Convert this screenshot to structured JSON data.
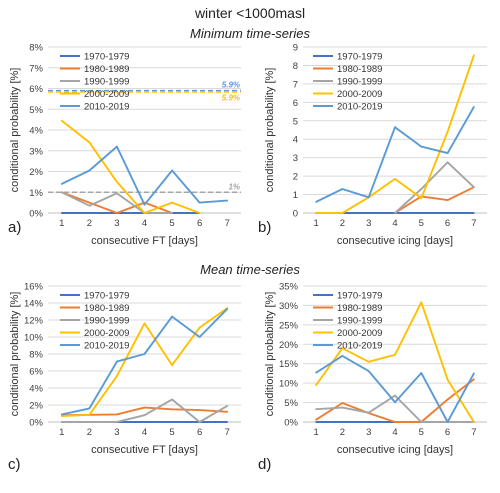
{
  "title": "winter <1000masl",
  "section_top": "Minimum time-series",
  "section_bottom": "Mean time-series",
  "colors": {
    "1970-1979": "#4472c4",
    "1980-1989": "#ed7d31",
    "1990-1999": "#a5a5a5",
    "2000-2009": "#ffc000",
    "2010-2019": "#5b9bd5",
    "grid": "#d9d9d9",
    "axis": "#bfbfbf"
  },
  "chart_data": [
    {
      "id": "a",
      "panel_label": "a)",
      "type": "line",
      "xlabel": "consecutive FT [days]",
      "ylabel": "conditional probability [%]",
      "x": [
        1,
        2,
        3,
        4,
        5,
        6,
        7
      ],
      "ylim": [
        0,
        8
      ],
      "yticks": [
        0,
        1,
        2,
        3,
        4,
        5,
        6,
        7,
        8
      ],
      "ytick_suffix": "%",
      "legend_position": "top-left",
      "series": [
        {
          "name": "1970-1979",
          "values": [
            0,
            0,
            0,
            0,
            0,
            0,
            null
          ]
        },
        {
          "name": "1980-1989",
          "values": [
            1.0,
            0.5,
            0,
            0.5,
            0,
            null,
            null
          ]
        },
        {
          "name": "1990-1999",
          "values": [
            1.0,
            0.35,
            0.95,
            0,
            0,
            null,
            null
          ]
        },
        {
          "name": "2000-2009",
          "values": [
            4.45,
            3.4,
            1.5,
            0,
            0.5,
            0,
            null
          ]
        },
        {
          "name": "2010-2019",
          "values": [
            1.4,
            2.05,
            3.2,
            0.4,
            2.05,
            0.5,
            0.6
          ]
        }
      ],
      "reference_lines": [
        {
          "value": 1.0,
          "label": "1%",
          "color": "#a5a5a5"
        },
        {
          "value": 5.9,
          "label": "5.9%",
          "color": "#5b9bd5",
          "label_pos": "above"
        },
        {
          "value": 5.9,
          "label": "5.9%",
          "color": "#ffc000",
          "label_pos": "below"
        }
      ]
    },
    {
      "id": "b",
      "panel_label": "b)",
      "type": "line",
      "xlabel": "consecutive icing [days]",
      "ylabel": "conditional probability [%]",
      "x": [
        1,
        2,
        3,
        4,
        5,
        6,
        7
      ],
      "ylim": [
        0,
        9
      ],
      "yticks": [
        0,
        1,
        2,
        3,
        4,
        5,
        6,
        7,
        8,
        9
      ],
      "ytick_suffix": "",
      "legend_position": "top-left",
      "series": [
        {
          "name": "1970-1979",
          "values": [
            0,
            0,
            0,
            0,
            0,
            0,
            0
          ]
        },
        {
          "name": "1980-1989",
          "values": [
            null,
            null,
            null,
            0,
            0.9,
            0.7,
            1.4
          ]
        },
        {
          "name": "1990-1999",
          "values": [
            null,
            null,
            null,
            0,
            1.3,
            2.75,
            1.4
          ]
        },
        {
          "name": "2000-2009",
          "values": [
            0,
            0,
            0.85,
            1.85,
            0.8,
            4.4,
            8.55
          ]
        },
        {
          "name": "2010-2019",
          "values": [
            0.6,
            1.3,
            0.85,
            4.65,
            3.6,
            3.25,
            5.75
          ]
        }
      ],
      "reference_lines": []
    },
    {
      "id": "c",
      "panel_label": "c)",
      "type": "line",
      "xlabel": "consecutive FT [days]",
      "ylabel": "conditional probability [%]",
      "x": [
        1,
        2,
        3,
        4,
        5,
        6,
        7
      ],
      "ylim": [
        0,
        16
      ],
      "yticks": [
        0,
        2,
        4,
        6,
        8,
        10,
        12,
        14,
        16
      ],
      "ytick_suffix": "%",
      "legend_position": "top-left",
      "series": [
        {
          "name": "1970-1979",
          "values": [
            0,
            0,
            0,
            0,
            0,
            0,
            0
          ]
        },
        {
          "name": "1980-1989",
          "values": [
            0.8,
            0.85,
            0.9,
            1.7,
            1.5,
            1.4,
            1.2
          ]
        },
        {
          "name": "1990-1999",
          "values": [
            0,
            0,
            0,
            0.8,
            2.65,
            0,
            1.9
          ]
        },
        {
          "name": "2000-2009",
          "values": [
            0.7,
            0.85,
            5.4,
            11.6,
            6.7,
            11.1,
            13.4
          ]
        },
        {
          "name": "2010-2019",
          "values": [
            0.9,
            1.6,
            7.1,
            8.0,
            12.4,
            10.0,
            13.3
          ]
        }
      ],
      "reference_lines": []
    },
    {
      "id": "d",
      "panel_label": "d)",
      "type": "line",
      "xlabel": "consecutive icing [days]",
      "ylabel": "conditional probability [%]",
      "x": [
        1,
        2,
        3,
        4,
        5,
        6,
        7
      ],
      "ylim": [
        0,
        35
      ],
      "yticks": [
        0,
        5,
        10,
        15,
        20,
        25,
        30,
        35
      ],
      "ytick_suffix": "%",
      "legend_position": "top-left",
      "series": [
        {
          "name": "1970-1979",
          "values": [
            0,
            0,
            0,
            0,
            0,
            0,
            0
          ]
        },
        {
          "name": "1980-1989",
          "values": [
            0.6,
            4.9,
            2.3,
            0,
            0,
            5.8,
            11.0
          ]
        },
        {
          "name": "1990-1999",
          "values": [
            3.3,
            3.7,
            2.4,
            6.8,
            0,
            0,
            0
          ]
        },
        {
          "name": "2000-2009",
          "values": [
            9.5,
            19.0,
            15.5,
            17.3,
            30.8,
            10.9,
            0
          ]
        },
        {
          "name": "2010-2019",
          "values": [
            12.7,
            17.0,
            13.1,
            5.1,
            12.6,
            0,
            12.5
          ]
        }
      ],
      "reference_lines": []
    }
  ]
}
